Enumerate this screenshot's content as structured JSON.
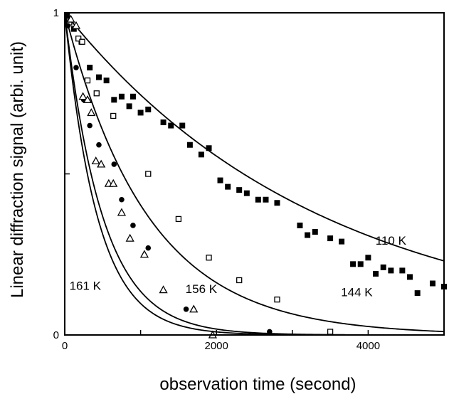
{
  "chart_data": {
    "type": "scatter",
    "title": "",
    "xlabel": "observation time (second)",
    "ylabel": "Linear diffraction signal (arbi. unit)",
    "xlim": [
      0,
      5000
    ],
    "ylim": [
      0,
      1
    ],
    "x_ticks": [
      0,
      2000,
      4000
    ],
    "x_tick_labels": [
      "0",
      "2000",
      "4000"
    ],
    "y_ticks": [
      0,
      1
    ],
    "y_tick_labels": [
      "0",
      "1"
    ],
    "grid": false,
    "legend": "none",
    "series": [
      {
        "name": "110 K",
        "marker": "filled-square",
        "fit_time_constant": 3400,
        "points": [
          [
            30,
            0.99
          ],
          [
            120,
            0.95
          ],
          [
            220,
            0.91
          ],
          [
            330,
            0.83
          ],
          [
            450,
            0.8
          ],
          [
            550,
            0.79
          ],
          [
            650,
            0.73
          ],
          [
            750,
            0.74
          ],
          [
            850,
            0.71
          ],
          [
            900,
            0.74
          ],
          [
            1000,
            0.69
          ],
          [
            1100,
            0.7
          ],
          [
            1300,
            0.66
          ],
          [
            1400,
            0.65
          ],
          [
            1550,
            0.65
          ],
          [
            1650,
            0.59
          ],
          [
            1800,
            0.56
          ],
          [
            1900,
            0.58
          ],
          [
            2050,
            0.48
          ],
          [
            2150,
            0.46
          ],
          [
            2300,
            0.45
          ],
          [
            2400,
            0.44
          ],
          [
            2550,
            0.42
          ],
          [
            2650,
            0.42
          ],
          [
            2800,
            0.41
          ],
          [
            3100,
            0.34
          ],
          [
            3200,
            0.31
          ],
          [
            3300,
            0.32
          ],
          [
            3500,
            0.3
          ],
          [
            3650,
            0.29
          ],
          [
            3800,
            0.22
          ],
          [
            3900,
            0.22
          ],
          [
            4000,
            0.24
          ],
          [
            4100,
            0.19
          ],
          [
            4200,
            0.21
          ],
          [
            4300,
            0.2
          ],
          [
            4450,
            0.2
          ],
          [
            4550,
            0.18
          ],
          [
            4650,
            0.13
          ],
          [
            4850,
            0.16
          ],
          [
            5000,
            0.15
          ]
        ]
      },
      {
        "name": "144 K",
        "marker": "open-square",
        "fit_time_constant": 1100,
        "points": [
          [
            60,
            0.97
          ],
          [
            180,
            0.92
          ],
          [
            230,
            0.91
          ],
          [
            300,
            0.79
          ],
          [
            420,
            0.75
          ],
          [
            640,
            0.68
          ],
          [
            1100,
            0.5
          ],
          [
            1500,
            0.36
          ],
          [
            1900,
            0.24
          ],
          [
            2300,
            0.17
          ],
          [
            2800,
            0.11
          ],
          [
            3500,
            0.01
          ]
        ]
      },
      {
        "name": "156 K",
        "marker": "filled-circle",
        "fit_time_constant": 500,
        "points": [
          [
            40,
            0.96
          ],
          [
            150,
            0.83
          ],
          [
            250,
            0.73
          ],
          [
            330,
            0.65
          ],
          [
            450,
            0.59
          ],
          [
            650,
            0.53
          ],
          [
            750,
            0.42
          ],
          [
            900,
            0.34
          ],
          [
            1100,
            0.27
          ],
          [
            1600,
            0.08
          ],
          [
            2700,
            0.01
          ]
        ]
      },
      {
        "name": "161 K",
        "marker": "open-triangle",
        "fit_time_constant": 430,
        "points": [
          [
            80,
            0.98
          ],
          [
            150,
            0.96
          ],
          [
            240,
            0.74
          ],
          [
            300,
            0.73
          ],
          [
            350,
            0.69
          ],
          [
            410,
            0.54
          ],
          [
            480,
            0.53
          ],
          [
            580,
            0.47
          ],
          [
            640,
            0.47
          ],
          [
            750,
            0.38
          ],
          [
            860,
            0.3
          ],
          [
            1050,
            0.25
          ],
          [
            1300,
            0.14
          ],
          [
            1700,
            0.08
          ],
          [
            1950,
            0.0
          ]
        ]
      }
    ],
    "curve_labels": [
      {
        "text": "110 K",
        "x": 4300,
        "y": 0.28
      },
      {
        "text": "144 K",
        "x": 3850,
        "y": 0.12
      },
      {
        "text": "156 K",
        "x": 1800,
        "y": 0.13
      },
      {
        "text": "161 K",
        "x": 270,
        "y": 0.14
      }
    ]
  }
}
